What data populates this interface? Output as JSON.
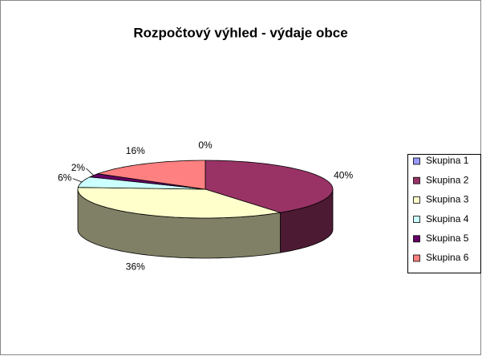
{
  "chart_data": {
    "type": "pie3d",
    "title": "Rozpočtový výhled - výdaje obce",
    "categories": [
      "Skupina 1",
      "Skupina 2",
      "Skupina 3",
      "Skupina 4",
      "Skupina 5",
      "Skupina 6"
    ],
    "values": [
      0,
      40,
      36,
      6,
      2,
      16
    ],
    "value_labels": [
      "0%",
      "40%",
      "36%",
      "6%",
      "2%",
      "16%"
    ],
    "colors": [
      "#9999ff",
      "#993366",
      "#ffffcc",
      "#ccffff",
      "#660066",
      "#ff8080"
    ],
    "legend": "right"
  }
}
